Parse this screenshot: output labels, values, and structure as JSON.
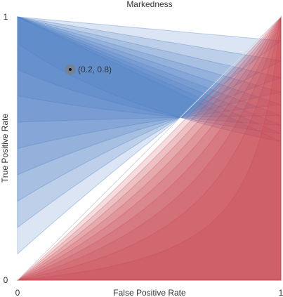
{
  "chart_data": {
    "type": "area",
    "title": "Markedness",
    "xlabel": "False Positive Rate",
    "ylabel": "True Positive Rate",
    "xlim": [
      0,
      1
    ],
    "ylim": [
      0,
      1
    ],
    "x_ticks": [
      "0",
      "1"
    ],
    "y_ticks": [
      "0",
      "1"
    ],
    "grid": false,
    "contour_levels": [
      0.1,
      0.2,
      0.3,
      0.4,
      0.5,
      0.6,
      0.7,
      0.8,
      0.9
    ],
    "colors": {
      "positive": "#4a7ec3",
      "negative": "#c9404f",
      "diagonal": "#d6d6d6"
    },
    "point": {
      "x": 0.2,
      "y": 0.8,
      "label": "(0.2, 0.8)"
    }
  }
}
